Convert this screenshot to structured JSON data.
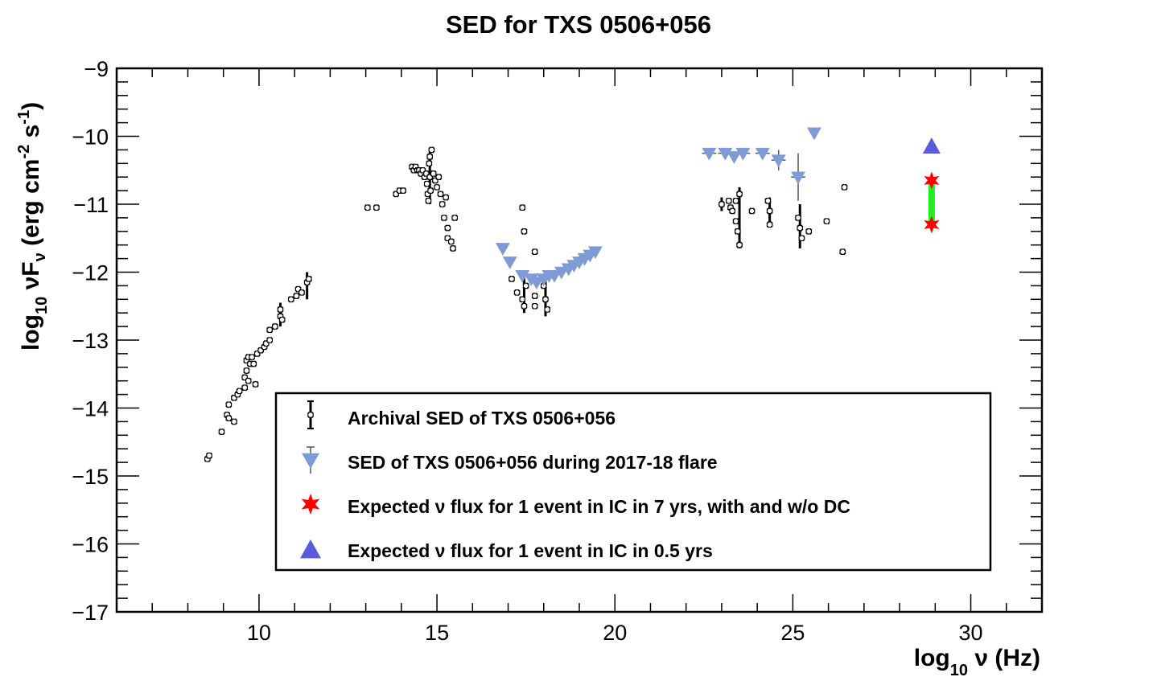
{
  "chart_data": {
    "type": "scatter",
    "title": "SED for TXS 0506+056",
    "xlim": [
      6,
      32
    ],
    "ylim": [
      -17,
      -9
    ],
    "x_ticks": [
      10,
      15,
      20,
      25,
      30
    ],
    "y_ticks": [
      -9,
      -10,
      -11,
      -12,
      -13,
      -14,
      -15,
      -16,
      -17
    ],
    "x_tick_labels": [
      "10",
      "15",
      "20",
      "25",
      "30"
    ],
    "y_tick_labels": [
      "−9",
      "−10",
      "−11",
      "−12",
      "−13",
      "−14",
      "−15",
      "−16",
      "−17"
    ],
    "xlabel": {
      "main": "log",
      "sub": "10",
      "rest": " ν (Hz)"
    },
    "ylabel": {
      "main": "log",
      "sub": "10",
      "rest": " νF",
      "sub2": "ν",
      "rest2": " (erg cm",
      "sup1": "-2",
      "rest3": " s",
      "sup2": "-1",
      "rest4": ")"
    },
    "grid": false,
    "legend_position": "bottom-center",
    "colors": {
      "archival": "#000000",
      "flare": "#7f9bd6",
      "flare_err": "#555555",
      "star": "#ff0000",
      "triangle": "#5a5add",
      "bar": "#22ee22"
    },
    "series": [
      {
        "name": "Archival SED of TXS 0506+056",
        "marker": "open-cross",
        "points": [
          [
            8.55,
            -14.75
          ],
          [
            8.6,
            -14.7
          ],
          [
            8.95,
            -14.35
          ],
          [
            9.1,
            -14.1
          ],
          [
            9.15,
            -13.95
          ],
          [
            9.15,
            -14.15
          ],
          [
            9.3,
            -13.85
          ],
          [
            9.3,
            -14.2
          ],
          [
            9.4,
            -13.8
          ],
          [
            9.45,
            -13.75
          ],
          [
            9.6,
            -13.7
          ],
          [
            9.6,
            -13.55
          ],
          [
            9.65,
            -13.3
          ],
          [
            9.65,
            -13.45
          ],
          [
            9.7,
            -13.25
          ],
          [
            9.7,
            -13.6
          ],
          [
            9.75,
            -13.35
          ],
          [
            9.8,
            -13.25
          ],
          [
            9.85,
            -13.35
          ],
          [
            9.9,
            -13.65
          ],
          [
            9.95,
            -13.2
          ],
          [
            10.05,
            -13.15
          ],
          [
            10.15,
            -13.1
          ],
          [
            10.2,
            -13.05
          ],
          [
            10.3,
            -13.0
          ],
          [
            10.3,
            -12.85
          ],
          [
            10.45,
            -12.8
          ],
          [
            10.6,
            -12.55
          ],
          [
            10.6,
            -12.65
          ],
          [
            10.65,
            -12.7
          ],
          [
            10.9,
            -12.4
          ],
          [
            11.05,
            -12.35
          ],
          [
            11.1,
            -12.25
          ],
          [
            11.2,
            -12.3
          ],
          [
            11.35,
            -12.15
          ],
          [
            11.4,
            -12.1
          ],
          [
            13.05,
            -11.05
          ],
          [
            13.3,
            -11.05
          ],
          [
            13.85,
            -10.85
          ],
          [
            13.95,
            -10.8
          ],
          [
            14.05,
            -10.8
          ],
          [
            14.3,
            -10.45
          ],
          [
            14.35,
            -10.5
          ],
          [
            14.4,
            -10.45
          ],
          [
            14.45,
            -10.5
          ],
          [
            14.5,
            -10.5
          ],
          [
            14.55,
            -10.55
          ],
          [
            14.6,
            -10.5
          ],
          [
            14.65,
            -10.6
          ],
          [
            14.7,
            -10.55
          ],
          [
            14.72,
            -10.7
          ],
          [
            14.74,
            -10.85
          ],
          [
            14.76,
            -10.95
          ],
          [
            14.78,
            -10.4
          ],
          [
            14.8,
            -10.3
          ],
          [
            14.8,
            -10.6
          ],
          [
            14.82,
            -10.8
          ],
          [
            14.85,
            -10.2
          ],
          [
            14.9,
            -10.55
          ],
          [
            14.95,
            -10.65
          ],
          [
            15.0,
            -10.75
          ],
          [
            15.05,
            -10.6
          ],
          [
            15.1,
            -10.85
          ],
          [
            15.15,
            -11.0
          ],
          [
            15.2,
            -11.2
          ],
          [
            15.25,
            -10.9
          ],
          [
            15.3,
            -11.35
          ],
          [
            15.3,
            -11.5
          ],
          [
            15.4,
            -11.55
          ],
          [
            15.45,
            -11.65
          ],
          [
            15.5,
            -11.2
          ],
          [
            17.1,
            -12.1
          ],
          [
            17.25,
            -12.3
          ],
          [
            17.4,
            -12.4
          ],
          [
            17.45,
            -12.5
          ],
          [
            17.45,
            -11.4
          ],
          [
            17.5,
            -12.2
          ],
          [
            17.4,
            -11.05
          ],
          [
            17.75,
            -12.35
          ],
          [
            17.75,
            -12.5
          ],
          [
            17.75,
            -11.7
          ],
          [
            18.0,
            -12.2
          ],
          [
            18.05,
            -12.4
          ],
          [
            18.1,
            -12.55
          ],
          [
            23.0,
            -11.0
          ],
          [
            23.2,
            -10.95
          ],
          [
            23.25,
            -11.05
          ],
          [
            23.3,
            -11.1
          ],
          [
            23.4,
            -10.95
          ],
          [
            23.4,
            -11.25
          ],
          [
            23.45,
            -11.4
          ],
          [
            23.5,
            -10.85
          ],
          [
            23.5,
            -11.6
          ],
          [
            23.85,
            -11.1
          ],
          [
            24.3,
            -10.95
          ],
          [
            24.35,
            -11.1
          ],
          [
            24.35,
            -11.3
          ],
          [
            25.15,
            -11.2
          ],
          [
            25.2,
            -11.35
          ],
          [
            25.25,
            -11.5
          ],
          [
            25.45,
            -11.4
          ],
          [
            25.95,
            -11.25
          ],
          [
            26.4,
            -11.7
          ],
          [
            26.45,
            -10.75
          ]
        ],
        "error_bars": [
          [
            10.6,
            -12.8,
            -12.45
          ],
          [
            11.35,
            -12.4,
            -12.0
          ],
          [
            14.8,
            -11.0,
            -10.2
          ],
          [
            17.45,
            -12.6,
            -12.05
          ],
          [
            18.05,
            -12.65,
            -12.05
          ],
          [
            23.5,
            -11.65,
            -10.75
          ],
          [
            23.0,
            -11.1,
            -10.9
          ],
          [
            24.35,
            -11.3,
            -10.9
          ],
          [
            25.2,
            -11.65,
            -11.0
          ]
        ]
      },
      {
        "name": "SED of TXS 0506+056 during 2017-18 flare",
        "marker": "triangle-down",
        "points": [
          [
            16.85,
            -11.65
          ],
          [
            17.05,
            -11.85
          ],
          [
            17.4,
            -12.05
          ],
          [
            17.65,
            -12.1
          ],
          [
            17.8,
            -12.15
          ],
          [
            18.0,
            -12.1
          ],
          [
            18.15,
            -12.05
          ],
          [
            18.3,
            -12.05
          ],
          [
            18.5,
            -12.0
          ],
          [
            18.7,
            -11.95
          ],
          [
            18.85,
            -11.9
          ],
          [
            19.0,
            -11.85
          ],
          [
            19.15,
            -11.8
          ],
          [
            19.3,
            -11.75
          ],
          [
            19.45,
            -11.7
          ],
          [
            22.65,
            -10.25
          ],
          [
            23.1,
            -10.25
          ],
          [
            23.35,
            -10.3
          ],
          [
            23.6,
            -10.25
          ],
          [
            24.15,
            -10.25
          ],
          [
            24.6,
            -10.35
          ],
          [
            25.15,
            -10.6
          ],
          [
            25.6,
            -9.95
          ]
        ],
        "x_errors": [
          [
            22.65,
            0.2
          ],
          [
            23.1,
            0.2
          ],
          [
            23.6,
            0.2
          ],
          [
            24.15,
            0.2
          ],
          [
            24.6,
            0.2
          ],
          [
            25.15,
            0.2
          ]
        ],
        "y_errors": [
          [
            24.6,
            -10.5,
            -10.2
          ],
          [
            25.15,
            -10.95,
            -10.25
          ]
        ]
      },
      {
        "name": "Expected ν flux for 1 event in IC in 7 yrs, with and w/o DC",
        "marker": "star",
        "points": [
          [
            28.9,
            -10.65
          ],
          [
            28.9,
            -11.3
          ]
        ]
      },
      {
        "name": "Expected ν flux for 1 event in IC in 0.5 yrs",
        "marker": "triangle-up",
        "points": [
          [
            28.9,
            -10.15
          ]
        ]
      }
    ],
    "legend": [
      {
        "label": "Archival SED of TXS 0506+056",
        "marker": "open-cross"
      },
      {
        "label": "SED of TXS 0506+056 during 2017-18 flare",
        "marker": "triangle-down"
      },
      {
        "label": "Expected ν flux for 1 event in IC in 7 yrs, with and w/o DC",
        "marker": "star"
      },
      {
        "label": "Expected ν flux for 1 event in IC in 0.5 yrs",
        "marker": "triangle-up"
      }
    ]
  }
}
